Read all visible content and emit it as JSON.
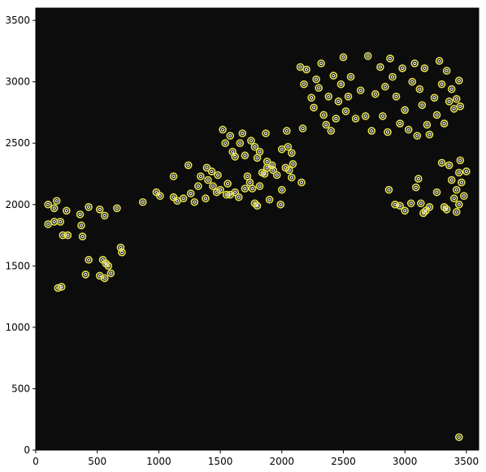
{
  "chart_data": {
    "type": "scatter",
    "title": "",
    "xlabel": "",
    "ylabel": "",
    "xlim": [
      0,
      3600
    ],
    "ylim": [
      0,
      3600
    ],
    "grid": false,
    "x_ticks": [
      "0",
      "500",
      "1000",
      "1500",
      "2000",
      "2500",
      "3000",
      "3500"
    ],
    "y_ticks": [
      "0",
      "500",
      "1000",
      "1500",
      "2000",
      "2500",
      "3000",
      "3500"
    ],
    "x_tick_values": [
      0,
      500,
      1000,
      1500,
      2000,
      2500,
      3000,
      3500
    ],
    "y_tick_values": [
      0,
      500,
      1000,
      1500,
      2000,
      2500,
      3000,
      3500
    ],
    "background_color": "#0c0c0c",
    "marker_color": "#e8e24a",
    "marker_center_color": "#ffffff",
    "series": [
      {
        "values": [
          [
            3440,
            105
          ],
          [
            180,
            1320
          ],
          [
            210,
            1330
          ],
          [
            405,
            1430
          ],
          [
            520,
            1420
          ],
          [
            560,
            1400
          ],
          [
            590,
            1500
          ],
          [
            610,
            1440
          ],
          [
            545,
            1550
          ],
          [
            570,
            1520
          ],
          [
            430,
            1550
          ],
          [
            690,
            1650
          ],
          [
            700,
            1610
          ],
          [
            100,
            1840
          ],
          [
            150,
            1860
          ],
          [
            200,
            1860
          ],
          [
            220,
            1750
          ],
          [
            260,
            1750
          ],
          [
            380,
            1740
          ],
          [
            370,
            1830
          ],
          [
            100,
            2000
          ],
          [
            150,
            1970
          ],
          [
            170,
            2030
          ],
          [
            250,
            1950
          ],
          [
            360,
            1920
          ],
          [
            430,
            1980
          ],
          [
            520,
            1960
          ],
          [
            560,
            1910
          ],
          [
            660,
            1970
          ],
          [
            870,
            2020
          ],
          [
            980,
            2100
          ],
          [
            1010,
            2070
          ],
          [
            1120,
            2230
          ],
          [
            1120,
            2060
          ],
          [
            1150,
            2030
          ],
          [
            1200,
            2050
          ],
          [
            1240,
            2320
          ],
          [
            1260,
            2090
          ],
          [
            1290,
            2020
          ],
          [
            1320,
            2150
          ],
          [
            1340,
            2230
          ],
          [
            1380,
            2050
          ],
          [
            1390,
            2300
          ],
          [
            1400,
            2200
          ],
          [
            1430,
            2270
          ],
          [
            1440,
            2150
          ],
          [
            1470,
            2100
          ],
          [
            1480,
            2240
          ],
          [
            1500,
            2120
          ],
          [
            1550,
            2080
          ],
          [
            1560,
            2170
          ],
          [
            1580,
            2080
          ],
          [
            1620,
            2100
          ],
          [
            1650,
            2060
          ],
          [
            1700,
            2130
          ],
          [
            1720,
            2230
          ],
          [
            1740,
            2180
          ],
          [
            1760,
            2130
          ],
          [
            1780,
            2010
          ],
          [
            1800,
            1990
          ],
          [
            1820,
            2150
          ],
          [
            1840,
            2260
          ],
          [
            1860,
            2250
          ],
          [
            1880,
            2300
          ],
          [
            1900,
            2040
          ],
          [
            1930,
            2280
          ],
          [
            1960,
            2240
          ],
          [
            1990,
            2000
          ],
          [
            2000,
            2120
          ],
          [
            2030,
            2300
          ],
          [
            2060,
            2280
          ],
          [
            2080,
            2220
          ],
          [
            2090,
            2330
          ],
          [
            2160,
            2180
          ],
          [
            1520,
            2610
          ],
          [
            1540,
            2500
          ],
          [
            1580,
            2560
          ],
          [
            1600,
            2430
          ],
          [
            1620,
            2390
          ],
          [
            1660,
            2500
          ],
          [
            1680,
            2580
          ],
          [
            1700,
            2400
          ],
          [
            1750,
            2520
          ],
          [
            1780,
            2470
          ],
          [
            1800,
            2380
          ],
          [
            1820,
            2430
          ],
          [
            1870,
            2580
          ],
          [
            1880,
            2350
          ],
          [
            1920,
            2320
          ],
          [
            2000,
            2450
          ],
          [
            2050,
            2470
          ],
          [
            2080,
            2420
          ],
          [
            2040,
            2600
          ],
          [
            2170,
            2620
          ],
          [
            2150,
            3120
          ],
          [
            2180,
            2980
          ],
          [
            2200,
            3100
          ],
          [
            2240,
            2870
          ],
          [
            2260,
            2790
          ],
          [
            2280,
            3020
          ],
          [
            2300,
            2950
          ],
          [
            2320,
            3150
          ],
          [
            2340,
            2730
          ],
          [
            2360,
            2650
          ],
          [
            2380,
            2880
          ],
          [
            2400,
            2600
          ],
          [
            2420,
            3050
          ],
          [
            2440,
            2700
          ],
          [
            2460,
            2840
          ],
          [
            2480,
            2980
          ],
          [
            2500,
            3200
          ],
          [
            2520,
            2760
          ],
          [
            2540,
            2880
          ],
          [
            2560,
            3040
          ],
          [
            2600,
            2700
          ],
          [
            2640,
            2930
          ],
          [
            2680,
            2720
          ],
          [
            2700,
            3210
          ],
          [
            2730,
            2600
          ],
          [
            2760,
            2900
          ],
          [
            2800,
            3120
          ],
          [
            2820,
            2720
          ],
          [
            2840,
            2960
          ],
          [
            2860,
            2590
          ],
          [
            2880,
            3190
          ],
          [
            2900,
            3040
          ],
          [
            2930,
            2880
          ],
          [
            2960,
            2660
          ],
          [
            2980,
            3110
          ],
          [
            3000,
            2770
          ],
          [
            3030,
            2610
          ],
          [
            3060,
            3000
          ],
          [
            3080,
            3150
          ],
          [
            3100,
            2560
          ],
          [
            3120,
            2940
          ],
          [
            3140,
            2810
          ],
          [
            3160,
            3110
          ],
          [
            3180,
            2650
          ],
          [
            3200,
            2570
          ],
          [
            3240,
            2870
          ],
          [
            3260,
            2730
          ],
          [
            3280,
            3170
          ],
          [
            3300,
            2980
          ],
          [
            3320,
            2660
          ],
          [
            3340,
            3090
          ],
          [
            3360,
            2840
          ],
          [
            3380,
            2940
          ],
          [
            3400,
            2780
          ],
          [
            3420,
            2860
          ],
          [
            3440,
            3010
          ],
          [
            3450,
            2800
          ],
          [
            2870,
            2120
          ],
          [
            2920,
            2000
          ],
          [
            2960,
            1990
          ],
          [
            3000,
            1950
          ],
          [
            3050,
            2010
          ],
          [
            3090,
            2140
          ],
          [
            3110,
            2210
          ],
          [
            3130,
            2010
          ],
          [
            3150,
            1930
          ],
          [
            3170,
            1950
          ],
          [
            3200,
            1980
          ],
          [
            3260,
            2100
          ],
          [
            3300,
            2340
          ],
          [
            3320,
            1980
          ],
          [
            3340,
            1960
          ],
          [
            3360,
            2320
          ],
          [
            3380,
            2200
          ],
          [
            3400,
            2050
          ],
          [
            3420,
            2120
          ],
          [
            3440,
            2260
          ],
          [
            3450,
            2360
          ],
          [
            3460,
            2180
          ],
          [
            3480,
            2070
          ],
          [
            3500,
            2270
          ],
          [
            3420,
            1940
          ],
          [
            3440,
            2000
          ]
        ]
      }
    ]
  }
}
